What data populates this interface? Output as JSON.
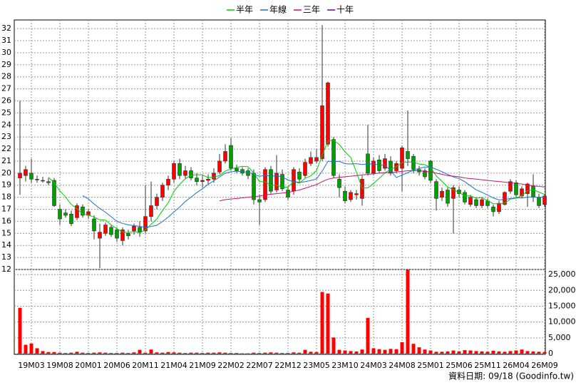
{
  "chart_data": {
    "type": "candlestick",
    "categories": [
      null,
      null,
      "19M03",
      null,
      null,
      null,
      null,
      "19M08",
      null,
      null,
      null,
      null,
      "20M01",
      null,
      null,
      null,
      null,
      "20M06",
      null,
      null,
      null,
      null,
      "20M11",
      null,
      null,
      null,
      null,
      "21M04",
      null,
      null,
      null,
      null,
      "21M09",
      null,
      null,
      null,
      null,
      "22M02",
      null,
      null,
      null,
      null,
      "22M07",
      null,
      null,
      null,
      null,
      "22M12",
      null,
      null,
      null,
      null,
      "23M05",
      null,
      null,
      null,
      null,
      "23M10",
      null,
      null,
      null,
      null,
      "24M03",
      null,
      null,
      null,
      null,
      "24M08",
      null,
      null,
      null,
      null,
      "25M01",
      null,
      null,
      null,
      null,
      "25M06",
      null,
      null,
      null,
      null,
      "25M11",
      null,
      null,
      null,
      null,
      "26M04",
      null,
      null,
      null,
      null,
      "26M09"
    ],
    "ohlc": [
      [
        19.6,
        26.0,
        18.2,
        20.0
      ],
      [
        19.8,
        20.6,
        19.3,
        20.3
      ],
      [
        20.0,
        21.2,
        19.2,
        19.5
      ],
      [
        19.5,
        19.8,
        19.2,
        19.5
      ],
      [
        19.4,
        19.7,
        19.2,
        19.4
      ],
      [
        19.3,
        19.6,
        19.0,
        19.2
      ],
      [
        19.4,
        19.6,
        17.2,
        17.3
      ],
      [
        17.0,
        17.4,
        15.7,
        16.2
      ],
      [
        16.7,
        17.0,
        16.3,
        16.5
      ],
      [
        16.6,
        16.9,
        15.6,
        15.8
      ],
      [
        16.3,
        17.5,
        16.1,
        17.3
      ],
      [
        17.2,
        17.4,
        16.3,
        16.5
      ],
      [
        16.5,
        17.0,
        16.2,
        16.8
      ],
      [
        16.2,
        16.5,
        14.5,
        15.2
      ],
      [
        14.6,
        15.8,
        12.1,
        15.1
      ],
      [
        15.0,
        15.9,
        14.8,
        15.7
      ],
      [
        15.5,
        15.7,
        14.7,
        14.9
      ],
      [
        15.3,
        15.5,
        14.3,
        14.6
      ],
      [
        14.4,
        15.5,
        14.0,
        15.3
      ],
      [
        15.0,
        15.3,
        14.5,
        14.8
      ],
      [
        15.2,
        15.8,
        14.9,
        15.6
      ],
      [
        15.5,
        16.0,
        14.7,
        15.1
      ],
      [
        15.2,
        19.0,
        15.0,
        16.4
      ],
      [
        16.4,
        19.3,
        16.0,
        17.3
      ],
      [
        17.3,
        18.3,
        17.0,
        18.0
      ],
      [
        18.0,
        19.2,
        17.7,
        19.0
      ],
      [
        19.0,
        19.8,
        18.6,
        19.5
      ],
      [
        19.5,
        21.0,
        19.2,
        20.8
      ],
      [
        20.8,
        21.2,
        19.5,
        19.8
      ],
      [
        19.8,
        20.6,
        19.5,
        20.2
      ],
      [
        20.2,
        20.5,
        19.4,
        19.6
      ],
      [
        19.6,
        20.0,
        19.0,
        19.3
      ],
      [
        19.3,
        19.8,
        18.8,
        19.4
      ],
      [
        19.4,
        19.9,
        19.1,
        19.5
      ],
      [
        19.5,
        20.4,
        19.2,
        20.0
      ],
      [
        20.1,
        21.6,
        19.9,
        21.0
      ],
      [
        21.0,
        22.4,
        20.8,
        21.8
      ],
      [
        22.3,
        22.9,
        20.2,
        20.4
      ],
      [
        20.4,
        20.7,
        20.0,
        20.2
      ],
      [
        20.3,
        20.5,
        19.8,
        20.0
      ],
      [
        20.2,
        20.4,
        19.5,
        19.8
      ],
      [
        20.0,
        20.3,
        17.4,
        17.8
      ],
      [
        17.8,
        18.2,
        15.7,
        17.6
      ],
      [
        17.8,
        20.5,
        17.6,
        20.3
      ],
      [
        20.3,
        20.6,
        18.3,
        18.5
      ],
      [
        18.6,
        21.5,
        18.4,
        20.0
      ],
      [
        19.9,
        20.3,
        18.5,
        18.7
      ],
      [
        18.6,
        18.9,
        17.8,
        18.0
      ],
      [
        18.5,
        20.5,
        18.2,
        20.3
      ],
      [
        20.1,
        20.4,
        19.2,
        19.5
      ],
      [
        19.8,
        21.2,
        19.6,
        20.9
      ],
      [
        20.8,
        21.8,
        20.6,
        21.3
      ],
      [
        21.0,
        22.0,
        20.8,
        21.3
      ],
      [
        21.2,
        32.3,
        21.0,
        25.6
      ],
      [
        22.4,
        27.6,
        22.2,
        27.5
      ],
      [
        22.8,
        23.0,
        19.6,
        19.8
      ],
      [
        19.5,
        19.9,
        18.0,
        18.8
      ],
      [
        18.5,
        18.9,
        17.5,
        17.7
      ],
      [
        17.8,
        18.6,
        17.6,
        18.4
      ],
      [
        18.2,
        18.6,
        17.8,
        18.3
      ],
      [
        17.9,
        19.8,
        17.3,
        19.5
      ],
      [
        21.6,
        24.0,
        19.8,
        20.0
      ],
      [
        20.0,
        21.3,
        19.8,
        21.0
      ],
      [
        21.1,
        21.5,
        20.0,
        20.2
      ],
      [
        20.4,
        21.6,
        20.2,
        21.2
      ],
      [
        21.0,
        21.4,
        19.8,
        20.0
      ],
      [
        20.2,
        21.0,
        20.0,
        20.8
      ],
      [
        20.4,
        22.3,
        18.5,
        22.1
      ],
      [
        21.8,
        25.2,
        20.6,
        21.2
      ],
      [
        21.4,
        21.6,
        20.0,
        20.3
      ],
      [
        20.3,
        20.6,
        19.8,
        20.1
      ],
      [
        20.2,
        20.4,
        19.5,
        19.7
      ],
      [
        21.0,
        21.1,
        19.2,
        19.4
      ],
      [
        19.3,
        19.5,
        16.9,
        17.9
      ],
      [
        18.0,
        18.8,
        17.7,
        18.5
      ],
      [
        18.6,
        18.8,
        17.2,
        17.5
      ],
      [
        17.9,
        19.0,
        15.0,
        18.8
      ],
      [
        18.6,
        18.9,
        18.0,
        18.3
      ],
      [
        18.4,
        18.6,
        17.4,
        17.6
      ],
      [
        17.4,
        18.2,
        17.2,
        18.0
      ],
      [
        17.8,
        18.0,
        17.1,
        17.3
      ],
      [
        17.3,
        18.0,
        17.1,
        17.8
      ],
      [
        17.7,
        17.9,
        17.1,
        17.3
      ],
      [
        17.2,
        17.4,
        16.4,
        16.8
      ],
      [
        16.8,
        17.7,
        16.6,
        17.5
      ],
      [
        17.4,
        18.5,
        17.3,
        18.4
      ],
      [
        18.5,
        19.5,
        18.3,
        19.3
      ],
      [
        19.2,
        19.4,
        18.0,
        18.2
      ],
      [
        18.1,
        18.9,
        17.9,
        18.7
      ],
      [
        18.3,
        19.2,
        17.2,
        19.1
      ],
      [
        18.9,
        19.9,
        17.6,
        18.0
      ],
      [
        18.0,
        18.3,
        17.1,
        17.3
      ],
      [
        17.4,
        18.2,
        17.2,
        18.1
      ]
    ],
    "up_color": "#ff0000",
    "down_color": "#00a000",
    "ylim": [
      12,
      32.6
    ],
    "yticks": [
      12,
      13,
      14,
      15,
      16,
      17,
      18,
      19,
      20,
      21,
      22,
      23,
      24,
      25,
      26,
      27,
      28,
      29,
      30,
      31,
      32
    ],
    "grid": true,
    "series": [
      {
        "name": "半年",
        "color": "#00cc00",
        "values": [
          null,
          null,
          null,
          null,
          null,
          19.65,
          19.2,
          18.52,
          18.02,
          17.4,
          17.05,
          16.6,
          16.52,
          16.35,
          16.12,
          16.1,
          15.7,
          15.38,
          15.13,
          15.07,
          15.15,
          15.05,
          15.3,
          15.75,
          16.2,
          16.9,
          17.55,
          18.5,
          19.07,
          19.55,
          19.82,
          19.87,
          19.85,
          19.63,
          19.67,
          19.8,
          20.17,
          20.35,
          20.48,
          20.57,
          20.53,
          20.0,
          19.3,
          19.28,
          19.0,
          19.0,
          18.82,
          18.85,
          19.3,
          19.17,
          19.57,
          19.78,
          20.22,
          21.48,
          22.68,
          22.73,
          22.38,
          21.78,
          21.3,
          20.08,
          18.75,
          18.78,
          19.15,
          19.57,
          20.03,
          20.32,
          20.53,
          20.88,
          20.92,
          20.93,
          20.75,
          20.7,
          20.47,
          19.77,
          19.32,
          18.85,
          18.63,
          18.4,
          18.1,
          18.12,
          17.92,
          17.97,
          17.72,
          17.47,
          17.45,
          17.52,
          17.85,
          17.92,
          18.15,
          18.53,
          18.62,
          18.43,
          18.23
        ]
      },
      {
        "name": "年線",
        "color": "#1f6fd0",
        "values": [
          null,
          null,
          null,
          null,
          null,
          null,
          null,
          null,
          null,
          null,
          null,
          18.13,
          17.86,
          17.44,
          17.07,
          16.75,
          16.38,
          15.99,
          15.83,
          15.71,
          15.64,
          15.58,
          15.5,
          15.57,
          15.67,
          15.99,
          16.35,
          16.78,
          17.19,
          17.65,
          18.01,
          18.39,
          18.7,
          19.07,
          19.37,
          19.68,
          20.0,
          20.11,
          20.17,
          20.1,
          20.1,
          19.9,
          19.74,
          19.82,
          19.74,
          19.79,
          19.68,
          19.43,
          19.3,
          19.23,
          19.29,
          19.39,
          19.52,
          20.17,
          20.99,
          20.95,
          20.98,
          20.78,
          20.76,
          20.78,
          20.72,
          20.76,
          20.77,
          20.68,
          20.67,
          20.2,
          19.64,
          19.83,
          20.04,
          20.25,
          20.39,
          20.51,
          20.5,
          20.33,
          20.12,
          19.89,
          19.69,
          19.55,
          19.29,
          18.95,
          18.62,
          18.41,
          18.18,
          17.94,
          17.78,
          17.82,
          17.89,
          17.95,
          17.94,
          18.0,
          18.04,
          17.98,
          18.04
        ]
      },
      {
        "name": "三年",
        "color": "#d0106a",
        "values": [
          null,
          null,
          null,
          null,
          null,
          null,
          null,
          null,
          null,
          null,
          null,
          null,
          null,
          null,
          null,
          null,
          null,
          null,
          null,
          null,
          null,
          null,
          null,
          null,
          null,
          null,
          null,
          null,
          null,
          null,
          null,
          null,
          null,
          null,
          null,
          17.7,
          17.8,
          17.85,
          17.9,
          17.95,
          18.0,
          18.05,
          18.1,
          18.2,
          18.25,
          18.3,
          18.35,
          18.4,
          18.5,
          18.6,
          18.75,
          18.9,
          19.05,
          19.3,
          19.5,
          19.6,
          19.65,
          19.7,
          19.75,
          19.8,
          19.85,
          19.9,
          19.95,
          20.0,
          20.05,
          20.05,
          20.1,
          20.15,
          20.2,
          20.2,
          20.2,
          20.15,
          20.1,
          20.0,
          19.9,
          19.8,
          19.75,
          19.7,
          19.6,
          19.55,
          19.5,
          19.45,
          19.4,
          19.35,
          19.3,
          19.25,
          19.2,
          19.15,
          19.1,
          19.0,
          18.95,
          18.9,
          18.85
        ]
      },
      {
        "name": "十年",
        "color": "#660099",
        "values": [
          null,
          null,
          null,
          null,
          null,
          null,
          null,
          null,
          null,
          null,
          null,
          null,
          null,
          null,
          null,
          null,
          null,
          null,
          null,
          null,
          null,
          null,
          null,
          null,
          null,
          null,
          null,
          null,
          null,
          null,
          null,
          null,
          null,
          null,
          null,
          null,
          null,
          null,
          null,
          null,
          null,
          null,
          null,
          null,
          null,
          null,
          null,
          null,
          null,
          null,
          null,
          null,
          null,
          null,
          null,
          null,
          null,
          null,
          null,
          null,
          null,
          null,
          null,
          null,
          null,
          null,
          null,
          null,
          null,
          null,
          null,
          null,
          null,
          null,
          null,
          null,
          null,
          null,
          null,
          null,
          null,
          null,
          null,
          null,
          null,
          null,
          null,
          null,
          null,
          null,
          null,
          null,
          null
        ]
      }
    ],
    "volume": {
      "axis": "y2",
      "color": "#ff0000",
      "values": [
        14500,
        2800,
        3200,
        1700,
        800,
        500,
        500,
        300,
        200,
        300,
        600,
        300,
        200,
        300,
        400,
        300,
        200,
        200,
        300,
        200,
        400,
        1200,
        300,
        1300,
        400,
        300,
        500,
        400,
        300,
        200,
        300,
        300,
        200,
        300,
        300,
        400,
        300,
        200,
        200,
        100,
        100,
        300,
        200,
        300,
        400,
        300,
        200,
        200,
        400,
        300,
        1200,
        600,
        500,
        19500,
        19000,
        5100,
        1200,
        1000,
        800,
        700,
        1300,
        11300,
        1700,
        1400,
        1200,
        1500,
        1400,
        3600,
        26500,
        3100,
        2000,
        1300,
        1000,
        600,
        600,
        700,
        1000,
        700,
        1100,
        1000,
        800,
        700,
        600,
        900,
        700,
        600,
        800,
        1000,
        1300,
        800,
        700,
        600,
        500
      ]
    },
    "y2lim": [
      0,
      26600
    ],
    "y2ticks": [
      0,
      {
        "value": 5000,
        "label": "5,000"
      },
      {
        "value": 10000,
        "label": "10,000"
      },
      {
        "value": 15000,
        "label": "15,000"
      },
      {
        "value": 20000,
        "label": "20,000"
      },
      {
        "value": 25000,
        "label": "25,000"
      }
    ],
    "source": "資料日期: 09/18  (Goodinfo.tw)"
  }
}
